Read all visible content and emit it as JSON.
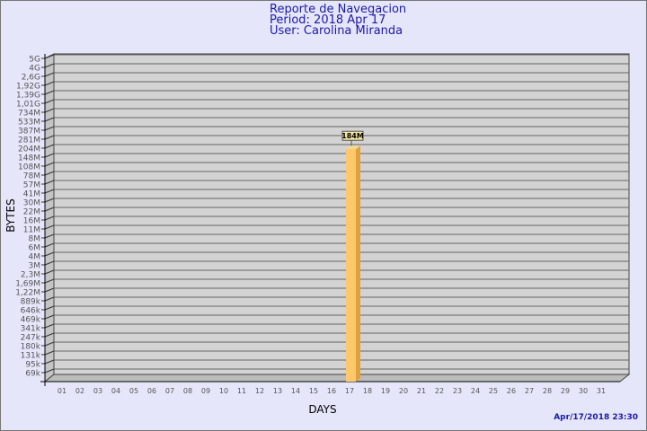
{
  "header": {
    "title": "Reporte de Navegacion",
    "period": "Period: 2018 Apr 17",
    "user": "User: Carolina Miranda"
  },
  "timestamp": "Apr/17/2018 23:30",
  "chart_data": {
    "type": "bar",
    "xlabel": "DAYS",
    "ylabel": "BYTES",
    "y_scale": "log",
    "grid": true,
    "categories": [
      "01",
      "02",
      "03",
      "04",
      "05",
      "06",
      "07",
      "08",
      "09",
      "10",
      "11",
      "12",
      "13",
      "14",
      "15",
      "16",
      "17",
      "18",
      "19",
      "20",
      "21",
      "22",
      "23",
      "24",
      "25",
      "26",
      "27",
      "28",
      "29",
      "30",
      "31"
    ],
    "y_tick_labels": [
      "5G",
      "4G",
      "2,6G",
      "1,92G",
      "1,39G",
      "1,01G",
      "734M",
      "533M",
      "387M",
      "281M",
      "204M",
      "148M",
      "108M",
      "78M",
      "57M",
      "41M",
      "30M",
      "22M",
      "16M",
      "11M",
      "8M",
      "6M",
      "4M",
      "3M",
      "2,3M",
      "1,69M",
      "1,22M",
      "889k",
      "646k",
      "469k",
      "341k",
      "247k",
      "180k",
      "131k",
      "95k",
      "69k"
    ],
    "bars": [
      {
        "x": "17",
        "value": 184000000,
        "label": "184M"
      }
    ],
    "colors": {
      "bar_front": "#fcc86a",
      "bar_side": "#e0a040",
      "wall": "#d3d3d3",
      "floor": "#bcbcbc",
      "title": "#1a1aa6",
      "background": "#e6e6fa"
    }
  }
}
